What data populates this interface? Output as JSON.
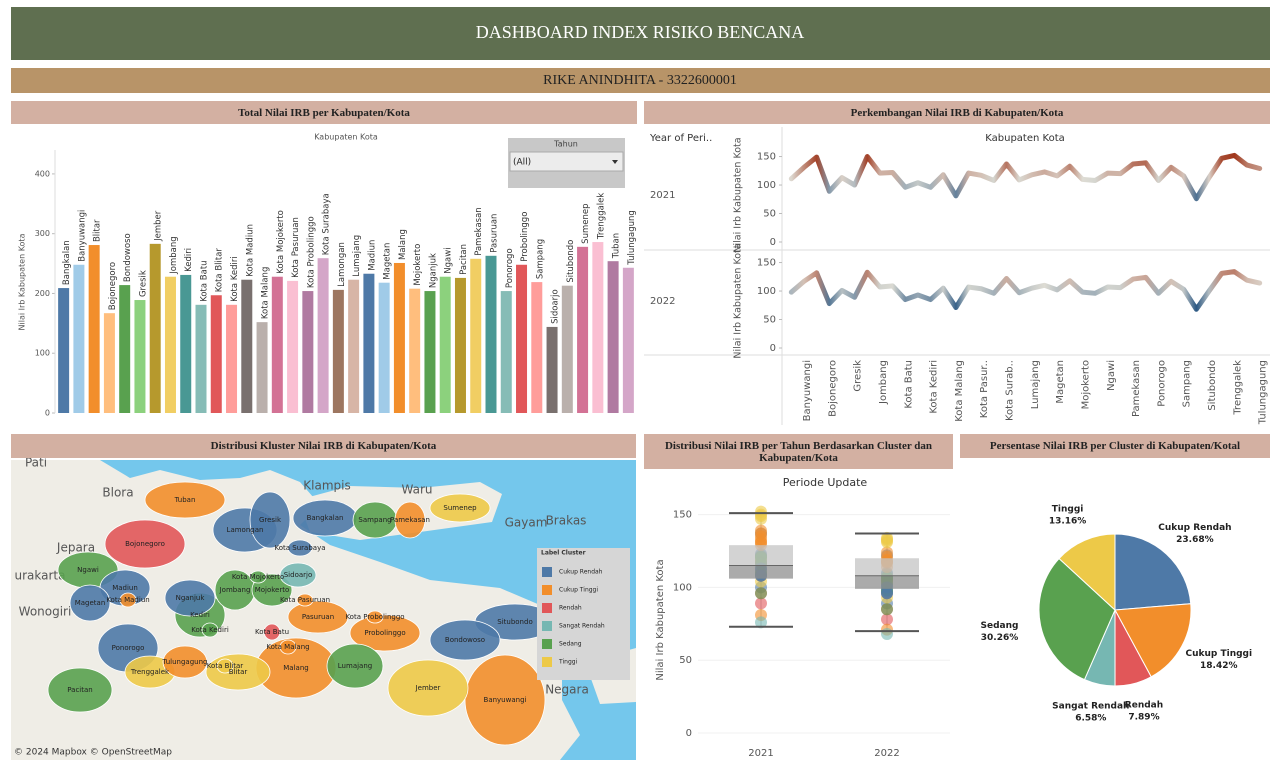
{
  "header": {
    "title": "DASHBOARD INDEX RISIKO BENCANA",
    "subtitle": "RIKE ANINDHITA - 3322600001"
  },
  "filter": {
    "label": "Tahun",
    "value": "(All)"
  },
  "map": {
    "title": "Distribusi Kluster Nilai IRB di Kabupaten/Kota",
    "legend_title": "Label Cluster",
    "attribution": "© 2024 Mapbox © OpenStreetMap",
    "clusters": [
      "Cukup Rendah",
      "Cukup Tinggi",
      "Tinggi",
      "Rendah",
      "Cukup Rendah",
      "Cukup Rendah",
      "Tinggi",
      "Sedang",
      "Sedang",
      "Rendah",
      "Tinggi",
      "Sedang",
      "Cukup Tinggi",
      "Cukup Tinggi",
      "Sedang",
      "Cukup Tinggi",
      "Cukup Tinggi",
      "Cukup Rendah",
      "Cukup Rendah",
      "Sedang",
      "Cukup Rendah",
      "Cukup Rendah",
      "Cukup Tinggi",
      "Sedang",
      "Cukup Rendah",
      "Sedang",
      "Sedang",
      "Cukup Tinggi",
      "Cukup Tinggi",
      "Cukup Rendah",
      "Cukup Tinggi",
      "Sedang",
      "Sangat Rendah",
      "Cukup Rendah",
      "Tinggi",
      "Tinggi",
      "Cukup Tinggi",
      "Cukup Tinggi"
    ],
    "place_labels": [
      "Pati",
      "Blora",
      "Jepara",
      "Klampis",
      "Waru",
      "Gayam",
      "Brakas",
      "urakarta",
      "Wonogiri",
      "Negara"
    ]
  },
  "chart_data": [
    {
      "type": "bar",
      "title": "Total Nilai IRB per Kabupaten/Kota",
      "subtitle": "Kabupaten Kota",
      "ylabel": "Nilai Irb Kabupaten Kota",
      "categories": [
        "Bangkalan",
        "Banyuwangi",
        "Blitar",
        "Bojonegoro",
        "Bondowoso",
        "Gresik",
        "Jember",
        "Jombang",
        "Kediri",
        "Kota Batu",
        "Kota Blitar",
        "Kota Kediri",
        "Kota Madiun",
        "Kota Malang",
        "Kota Mojokerto",
        "Kota Pasuruan",
        "Kota Probolinggo",
        "Kota Surabaya",
        "Lamongan",
        "Lumajang",
        "Madiun",
        "Magetan",
        "Malang",
        "Mojokerto",
        "Nganjuk",
        "Ngawi",
        "Pacitan",
        "Pamekasan",
        "Pasuruan",
        "Ponorogo",
        "Probolinggo",
        "Sampang",
        "Sidoarjo",
        "Situbondo",
        "Sumenep",
        "Trenggalek",
        "Tuban",
        "Tulungagung"
      ],
      "values": [
        209,
        248,
        281,
        167,
        214,
        189,
        283,
        228,
        231,
        181,
        197,
        181,
        223,
        152,
        228,
        221,
        204,
        259,
        206,
        223,
        233,
        218,
        251,
        208,
        204,
        228,
        226,
        258,
        263,
        204,
        248,
        219,
        144,
        213,
        278,
        286,
        254,
        243
      ],
      "colors": [
        "#4e79a7",
        "#a0cbe8",
        "#f28e2b",
        "#ffbe7d",
        "#59a14f",
        "#8cd17d",
        "#b6992d",
        "#f1ce63",
        "#499894",
        "#86bcb6",
        "#e15759",
        "#ff9d9a",
        "#79706e",
        "#bab0ac",
        "#d37295",
        "#fabfd2",
        "#b07aa1",
        "#d4a6c8",
        "#9d7660",
        "#d7b5a6"
      ],
      "ylim": [
        0,
        440
      ],
      "yticks": [
        0,
        100,
        200,
        300,
        400
      ],
      "grid": false
    },
    {
      "type": "line",
      "title": "Perkembangan Nilai IRB di Kabupaten/Kota",
      "subtitle": "Kabupaten Kota",
      "row_header": "Year of Peri..",
      "ylabel": "Nilai Irb Kabupaten Kota",
      "categories": [
        null,
        "Banyuwangi",
        null,
        "Bojonegoro",
        null,
        "Gresik",
        null,
        "Jombang",
        null,
        "Kota Batu",
        null,
        "Kota Kediri",
        null,
        "Kota Malang",
        null,
        "Kota Pasur..",
        null,
        "Kota Surab..",
        null,
        "Lumajang",
        null,
        "Magetan",
        null,
        "Mojokerto",
        null,
        "Ngawi",
        null,
        "Pamekasan",
        null,
        "Ponorogo",
        null,
        "Sampang",
        null,
        "Situbondo",
        null,
        "Trenggalek",
        null,
        "Tulungagung"
      ],
      "series": [
        {
          "name": "2021",
          "values": [
            111,
            131,
            149,
            89,
            113,
            100,
            150,
            121,
            122,
            96,
            104,
            96,
            118,
            81,
            121,
            117,
            108,
            137,
            109,
            118,
            123,
            116,
            133,
            110,
            108,
            121,
            120,
            137,
            139,
            108,
            131,
            116,
            76,
            113,
            147,
            152,
            135,
            129
          ]
        },
        {
          "name": "2022",
          "values": [
            98,
            117,
            132,
            78,
            101,
            89,
            133,
            107,
            109,
            85,
            93,
            85,
            105,
            71,
            107,
            104,
            96,
            122,
            97,
            105,
            110,
            102,
            118,
            98,
            96,
            107,
            106,
            121,
            124,
            96,
            117,
            103,
            68,
            100,
            131,
            134,
            119,
            114
          ]
        }
      ],
      "ylim": [
        0,
        165
      ],
      "yticks": [
        0,
        50,
        100,
        150
      ],
      "grid": false
    },
    {
      "type": "box",
      "title": "Distribusi Nilai IRB per Tahun Berdasarkan Cluster dan Kabupaten/Kota",
      "subtitle": "Periode Update",
      "ylabel": "Nilai Irb Kabupaten Kota",
      "categories": [
        "2021",
        "2022"
      ],
      "boxes": [
        {
          "whisker_low": 73,
          "q1": 106,
          "median": 115,
          "q3": 129,
          "whisker_high": 151
        },
        {
          "whisker_low": 70,
          "q1": 99,
          "median": 108,
          "q3": 120,
          "whisker_high": 137
        }
      ],
      "ylim": [
        0,
        160
      ],
      "yticks": [
        0,
        50,
        100,
        150
      ]
    },
    {
      "type": "pie",
      "title": "Persentase Nilai IRB per Cluster di Kabupaten/Kotal",
      "categories": [
        "Cukup Rendah",
        "Cukup Tinggi",
        "Rendah",
        "Sangat Rendah",
        "Sedang",
        "Tinggi"
      ],
      "values": [
        23.68,
        18.42,
        7.89,
        6.58,
        30.26,
        13.16
      ],
      "value_labels": [
        "23.68%",
        "18.42%",
        "7.89%",
        "6.58%",
        "30.26%",
        "13.16%"
      ],
      "colors": [
        "#4e79a7",
        "#f28e2b",
        "#e15759",
        "#76b7b2",
        "#59a14f",
        "#edc948"
      ]
    }
  ]
}
